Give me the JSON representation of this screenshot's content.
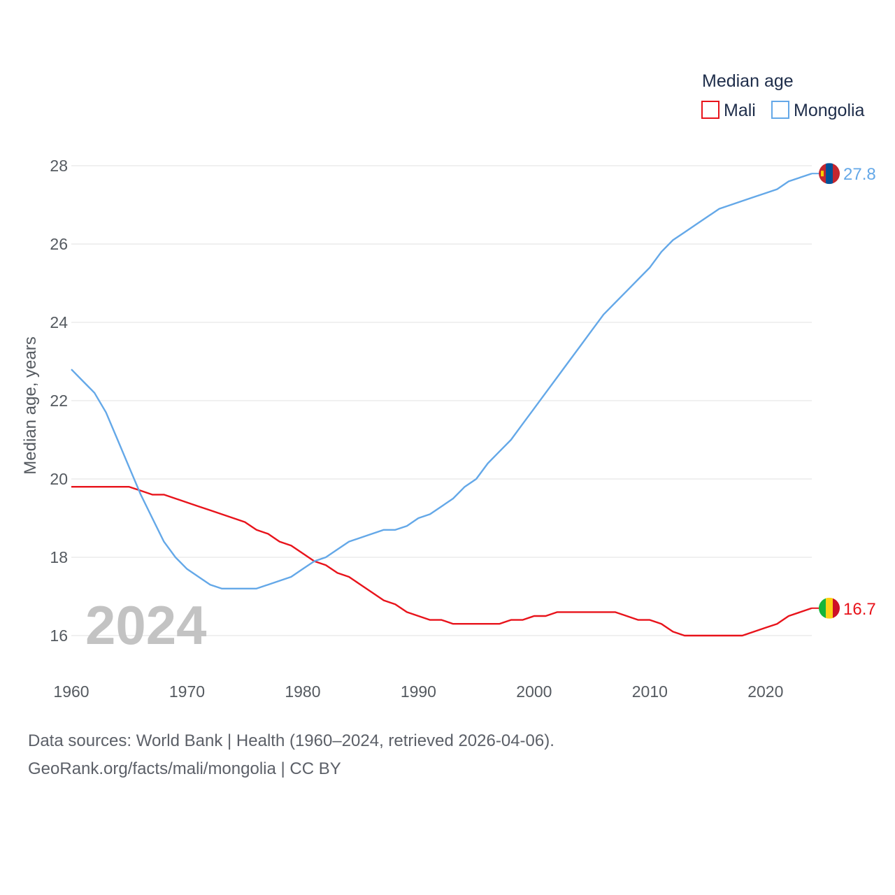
{
  "chart_data": {
    "type": "line",
    "title": "Median age",
    "ylabel": "Median age, years",
    "xlabel": "",
    "xlim": [
      1960,
      2024
    ],
    "ylim": [
      15,
      28.5
    ],
    "xticks": [
      1960,
      1970,
      1980,
      1990,
      2000,
      2010,
      2020
    ],
    "yticks": [
      16,
      18,
      20,
      22,
      24,
      26,
      28
    ],
    "grid": true,
    "legend_position": "top-right",
    "year_label": "2024",
    "x": [
      1960,
      1961,
      1962,
      1963,
      1964,
      1965,
      1966,
      1967,
      1968,
      1969,
      1970,
      1971,
      1972,
      1973,
      1974,
      1975,
      1976,
      1977,
      1978,
      1979,
      1980,
      1981,
      1982,
      1983,
      1984,
      1985,
      1986,
      1987,
      1988,
      1989,
      1990,
      1991,
      1992,
      1993,
      1994,
      1995,
      1996,
      1997,
      1998,
      1999,
      2000,
      2001,
      2002,
      2003,
      2004,
      2005,
      2006,
      2007,
      2008,
      2009,
      2010,
      2011,
      2012,
      2013,
      2014,
      2015,
      2016,
      2017,
      2018,
      2019,
      2020,
      2021,
      2022,
      2023,
      2024
    ],
    "series": [
      {
        "name": "Mali",
        "color": "#e8131b",
        "end_label": "16.7",
        "flag": "mali",
        "values": [
          19.8,
          19.8,
          19.8,
          19.8,
          19.8,
          19.8,
          19.7,
          19.6,
          19.6,
          19.5,
          19.4,
          19.3,
          19.2,
          19.1,
          19.0,
          18.9,
          18.7,
          18.6,
          18.4,
          18.3,
          18.1,
          17.9,
          17.8,
          17.6,
          17.5,
          17.3,
          17.1,
          16.9,
          16.8,
          16.6,
          16.5,
          16.4,
          16.4,
          16.3,
          16.3,
          16.3,
          16.3,
          16.3,
          16.4,
          16.4,
          16.5,
          16.5,
          16.6,
          16.6,
          16.6,
          16.6,
          16.6,
          16.6,
          16.5,
          16.4,
          16.4,
          16.3,
          16.1,
          16.0,
          16.0,
          16.0,
          16.0,
          16.0,
          16.0,
          16.1,
          16.2,
          16.3,
          16.5,
          16.6,
          16.7
        ]
      },
      {
        "name": "Mongolia",
        "color": "#64a8e8",
        "end_label": "27.8",
        "flag": "mongolia",
        "values": [
          22.8,
          22.5,
          22.2,
          21.7,
          21.0,
          20.3,
          19.6,
          19.0,
          18.4,
          18.0,
          17.7,
          17.5,
          17.3,
          17.2,
          17.2,
          17.2,
          17.2,
          17.3,
          17.4,
          17.5,
          17.7,
          17.9,
          18.0,
          18.2,
          18.4,
          18.5,
          18.6,
          18.7,
          18.7,
          18.8,
          19.0,
          19.1,
          19.3,
          19.5,
          19.8,
          20.0,
          20.4,
          20.7,
          21.0,
          21.4,
          21.8,
          22.2,
          22.6,
          23.0,
          23.4,
          23.8,
          24.2,
          24.5,
          24.8,
          25.1,
          25.4,
          25.8,
          26.1,
          26.3,
          26.5,
          26.7,
          26.9,
          27.0,
          27.1,
          27.2,
          27.3,
          27.4,
          27.6,
          27.7,
          27.8
        ]
      }
    ]
  },
  "footer": {
    "line1": "Data sources: World Bank | Health (1960–2024, retrieved 2026-04-06).",
    "line2": "GeoRank.org/facts/mali/mongolia | CC BY"
  }
}
